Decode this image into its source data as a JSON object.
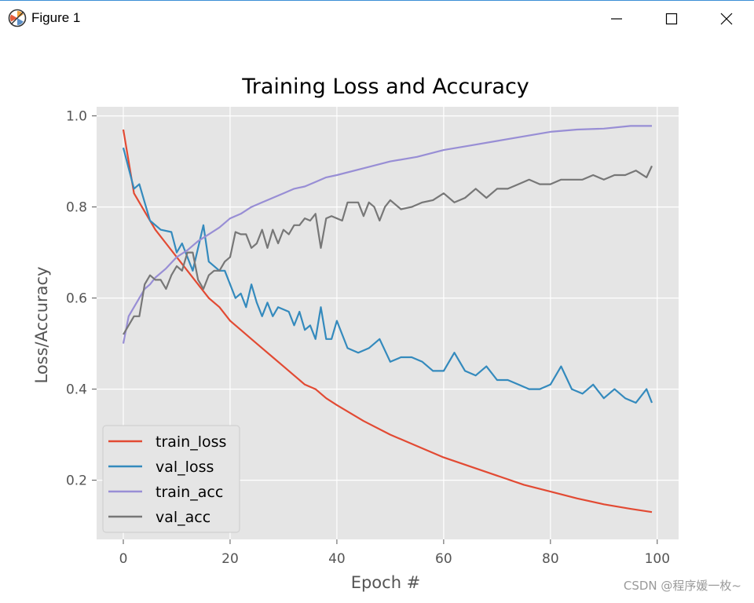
{
  "window": {
    "title": "Figure 1",
    "controls": [
      "minimize",
      "maximize",
      "close"
    ]
  },
  "watermark": "CSDN @程序媛一枚~",
  "chart_data": {
    "type": "line",
    "title": "Training Loss and Accuracy",
    "xlabel": "Epoch #",
    "ylabel": "Loss/Accuracy",
    "xlim": [
      -5,
      104
    ],
    "ylim": [
      0.07,
      1.02
    ],
    "xticks": [
      0,
      20,
      40,
      60,
      80,
      100
    ],
    "yticks": [
      0.2,
      0.4,
      0.6,
      0.8,
      1.0
    ],
    "xtick_labels": [
      "0",
      "20",
      "40",
      "60",
      "80",
      "100"
    ],
    "ytick_labels": [
      "0.2",
      "0.4",
      "0.6",
      "0.8",
      "1.0"
    ],
    "grid": true,
    "legend_position": "lower-left",
    "series": [
      {
        "name": "train_loss",
        "color": "#e24a33",
        "x": [
          0,
          2,
          4,
          6,
          8,
          10,
          12,
          14,
          16,
          18,
          20,
          22,
          24,
          26,
          28,
          30,
          32,
          34,
          36,
          38,
          40,
          45,
          50,
          55,
          60,
          65,
          70,
          75,
          80,
          85,
          90,
          95,
          99
        ],
        "y": [
          0.97,
          0.83,
          0.79,
          0.75,
          0.72,
          0.69,
          0.66,
          0.63,
          0.6,
          0.58,
          0.55,
          0.53,
          0.51,
          0.49,
          0.47,
          0.45,
          0.43,
          0.41,
          0.4,
          0.38,
          0.365,
          0.33,
          0.3,
          0.275,
          0.25,
          0.23,
          0.21,
          0.19,
          0.175,
          0.16,
          0.147,
          0.137,
          0.13
        ]
      },
      {
        "name": "val_loss",
        "color": "#348abd",
        "x": [
          0,
          2,
          3,
          5,
          7,
          9,
          10,
          11,
          13,
          15,
          16,
          18,
          19,
          20,
          21,
          22,
          23,
          24,
          25,
          26,
          27,
          28,
          29,
          30,
          31,
          32,
          33,
          34,
          35,
          36,
          37,
          38,
          39,
          40,
          42,
          44,
          46,
          48,
          50,
          52,
          54,
          56,
          58,
          60,
          62,
          64,
          66,
          68,
          70,
          72,
          74,
          76,
          78,
          80,
          82,
          84,
          86,
          88,
          90,
          92,
          94,
          96,
          98,
          99
        ],
        "y": [
          0.93,
          0.84,
          0.85,
          0.77,
          0.75,
          0.745,
          0.7,
          0.72,
          0.66,
          0.76,
          0.68,
          0.66,
          0.66,
          0.63,
          0.6,
          0.61,
          0.58,
          0.63,
          0.59,
          0.56,
          0.59,
          0.56,
          0.58,
          0.575,
          0.57,
          0.54,
          0.57,
          0.53,
          0.54,
          0.51,
          0.58,
          0.51,
          0.51,
          0.55,
          0.49,
          0.48,
          0.49,
          0.51,
          0.46,
          0.47,
          0.47,
          0.46,
          0.44,
          0.44,
          0.48,
          0.44,
          0.43,
          0.45,
          0.42,
          0.42,
          0.41,
          0.4,
          0.4,
          0.41,
          0.45,
          0.4,
          0.39,
          0.41,
          0.38,
          0.4,
          0.38,
          0.37,
          0.4,
          0.37
        ]
      },
      {
        "name": "train_acc",
        "color": "#988ed5",
        "x": [
          0,
          1,
          2,
          3,
          4,
          5,
          6,
          8,
          10,
          12,
          14,
          16,
          18,
          20,
          22,
          24,
          26,
          28,
          30,
          32,
          34,
          36,
          38,
          40,
          45,
          50,
          55,
          60,
          65,
          70,
          75,
          80,
          85,
          90,
          95,
          99
        ],
        "y": [
          0.5,
          0.56,
          0.58,
          0.6,
          0.62,
          0.63,
          0.645,
          0.665,
          0.69,
          0.705,
          0.725,
          0.74,
          0.755,
          0.775,
          0.785,
          0.8,
          0.81,
          0.82,
          0.83,
          0.84,
          0.845,
          0.855,
          0.865,
          0.87,
          0.885,
          0.9,
          0.91,
          0.925,
          0.935,
          0.945,
          0.955,
          0.965,
          0.97,
          0.972,
          0.978,
          0.978
        ]
      },
      {
        "name": "val_acc",
        "color": "#777777",
        "x": [
          0,
          2,
          3,
          4,
          5,
          6,
          7,
          8,
          9,
          10,
          11,
          12,
          13,
          14,
          15,
          16,
          17,
          18,
          19,
          20,
          21,
          22,
          23,
          24,
          25,
          26,
          27,
          28,
          29,
          30,
          31,
          32,
          33,
          34,
          35,
          36,
          37,
          38,
          39,
          40,
          41,
          42,
          43,
          44,
          45,
          46,
          47,
          48,
          49,
          50,
          52,
          54,
          56,
          58,
          60,
          62,
          64,
          66,
          68,
          70,
          72,
          74,
          76,
          78,
          80,
          82,
          84,
          86,
          88,
          90,
          92,
          94,
          96,
          98,
          99
        ],
        "y": [
          0.52,
          0.56,
          0.56,
          0.63,
          0.65,
          0.64,
          0.64,
          0.62,
          0.65,
          0.67,
          0.66,
          0.7,
          0.7,
          0.64,
          0.62,
          0.65,
          0.66,
          0.66,
          0.68,
          0.69,
          0.745,
          0.74,
          0.74,
          0.71,
          0.72,
          0.75,
          0.71,
          0.75,
          0.72,
          0.75,
          0.74,
          0.76,
          0.76,
          0.775,
          0.77,
          0.785,
          0.71,
          0.775,
          0.78,
          0.775,
          0.77,
          0.81,
          0.81,
          0.81,
          0.78,
          0.81,
          0.8,
          0.77,
          0.8,
          0.815,
          0.795,
          0.8,
          0.81,
          0.815,
          0.83,
          0.81,
          0.82,
          0.84,
          0.82,
          0.84,
          0.84,
          0.85,
          0.86,
          0.85,
          0.85,
          0.86,
          0.86,
          0.86,
          0.87,
          0.86,
          0.87,
          0.87,
          0.88,
          0.865,
          0.89
        ]
      }
    ]
  }
}
